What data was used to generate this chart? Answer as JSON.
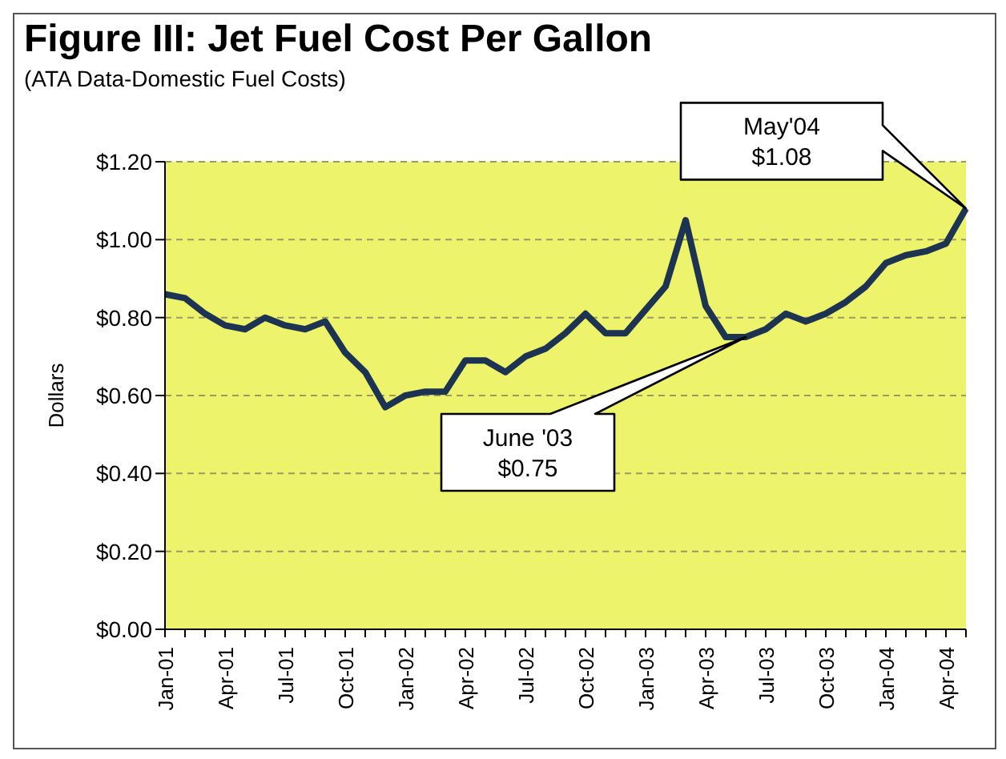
{
  "chart_data": {
    "type": "line",
    "title": "Figure III: Jet Fuel Cost Per Gallon",
    "subtitle": "(ATA Data-Domestic Fuel Costs)",
    "ylabel": "Dollars",
    "categories": [
      "Jan-01",
      null,
      null,
      "Apr-01",
      null,
      null,
      "Jul-01",
      null,
      null,
      "Oct-01",
      null,
      null,
      "Jan-02",
      null,
      null,
      "Apr-02",
      null,
      null,
      "Jul-02",
      null,
      null,
      "Oct-02",
      null,
      null,
      "Jan-03",
      null,
      null,
      "Apr-03",
      null,
      null,
      "Jul-03",
      null,
      null,
      "Oct-03",
      null,
      null,
      "Jan-04",
      null,
      null,
      "Apr-04",
      null
    ],
    "series": [
      {
        "color": "#1c3352",
        "values": [
          0.86,
          0.85,
          0.81,
          0.78,
          0.77,
          0.8,
          0.78,
          0.77,
          0.79,
          0.71,
          0.66,
          0.57,
          0.6,
          0.61,
          0.61,
          0.69,
          0.69,
          0.66,
          0.7,
          0.72,
          0.76,
          0.81,
          0.76,
          0.76,
          0.82,
          0.88,
          1.05,
          0.83,
          0.75,
          0.75,
          0.77,
          0.81,
          0.79,
          0.81,
          0.84,
          0.88,
          0.94,
          0.96,
          0.97,
          0.99,
          1.08
        ]
      }
    ],
    "ylim": [
      0,
      1.2
    ],
    "yticks": [
      {
        "value": 0,
        "label": "$0.00"
      },
      {
        "value": 0.2,
        "label": "$0.20"
      },
      {
        "value": 0.4,
        "label": "$0.40"
      },
      {
        "value": 0.6,
        "label": "$0.60"
      },
      {
        "value": 0.8,
        "label": "$0.80"
      },
      {
        "value": 1,
        "label": "$1.00"
      },
      {
        "value": 1.2,
        "label": "$1.20"
      }
    ],
    "grid": "y",
    "marker": "none",
    "line_style": "solid",
    "annotations": [
      "June '03\n$0.75",
      "May'04\n$1.08"
    ]
  }
}
